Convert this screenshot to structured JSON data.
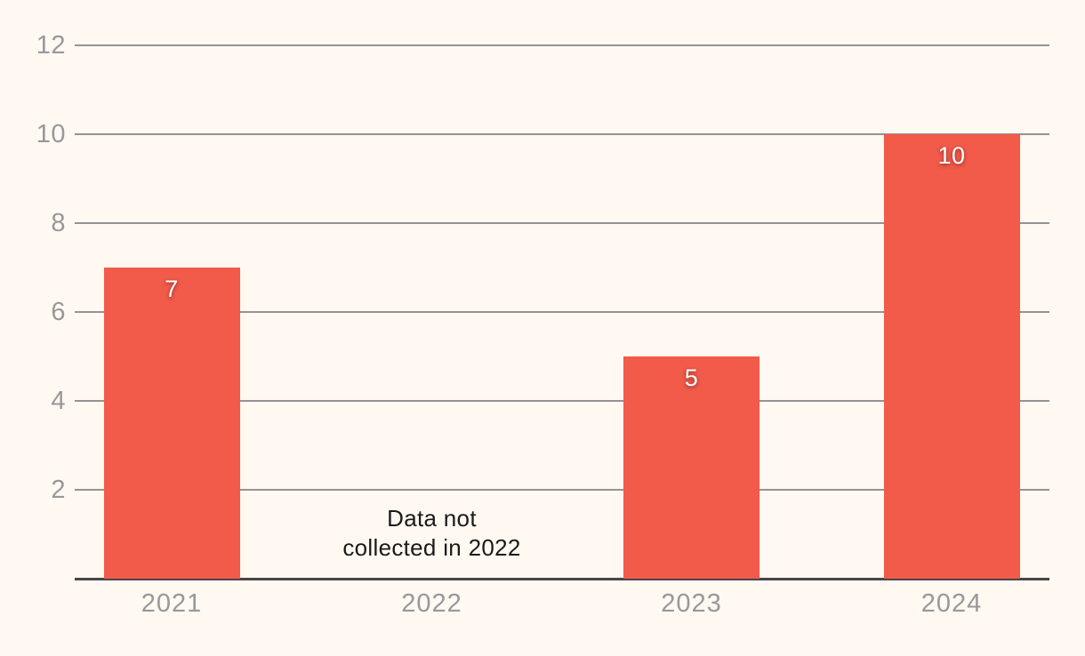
{
  "chart_data": {
    "type": "bar",
    "title": "",
    "xlabel": "",
    "ylabel": "",
    "categories": [
      "2021",
      "2022",
      "2023",
      "2024"
    ],
    "values": [
      7,
      null,
      5,
      10
    ],
    "yticks": [
      2,
      4,
      6,
      8,
      10,
      12
    ],
    "ylim": [
      0,
      12
    ],
    "grid": true,
    "legend": "none",
    "annotation": {
      "text": "Data not\ncollected in 2022",
      "category": "2022"
    },
    "colors": {
      "background": "#FFF9F1",
      "bar": "#F25A4A",
      "gridline": "#969296",
      "axis_line": "#4A4448",
      "tick_label": "#9A979B",
      "value_label": "#FFFFFF",
      "annotation_text": "#1B1A19"
    }
  }
}
